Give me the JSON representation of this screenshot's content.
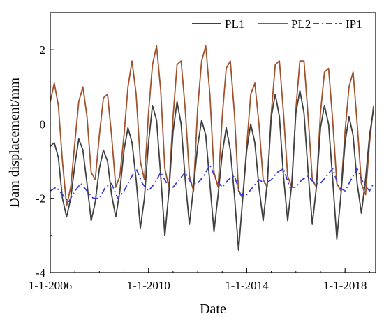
{
  "chart_data": {
    "type": "line",
    "title": "",
    "xlabel": "Date",
    "ylabel": "Dam displacement/mm",
    "xlim": [
      "2006-01-01",
      "2019-04-01"
    ],
    "ylim": [
      -4,
      3
    ],
    "x_ticks": [
      "1-1-2006",
      "1-1-2010",
      "1-1-2014",
      "1-1-2018"
    ],
    "y_ticks": [
      -4,
      -2,
      0,
      2
    ],
    "legend_position": "top-right",
    "grid": false,
    "series": [
      {
        "name": "PL1",
        "color": "#404040",
        "style": "solid",
        "points": [
          [
            "2006-01-01",
            -0.6
          ],
          [
            "2006-03-01",
            -0.5
          ],
          [
            "2006-05-01",
            -0.9
          ],
          [
            "2006-07-01",
            -2.0
          ],
          [
            "2006-09-01",
            -2.5
          ],
          [
            "2006-11-01",
            -2.0
          ],
          [
            "2007-01-01",
            -1.1
          ],
          [
            "2007-03-01",
            -0.4
          ],
          [
            "2007-05-01",
            -0.7
          ],
          [
            "2007-07-01",
            -1.6
          ],
          [
            "2007-09-01",
            -2.6
          ],
          [
            "2007-11-01",
            -2.1
          ],
          [
            "2008-01-01",
            -1.2
          ],
          [
            "2008-03-01",
            -0.7
          ],
          [
            "2008-05-01",
            -1.0
          ],
          [
            "2008-07-01",
            -1.9
          ],
          [
            "2008-09-01",
            -2.5
          ],
          [
            "2008-11-01",
            -1.8
          ],
          [
            "2009-01-01",
            -0.7
          ],
          [
            "2009-03-01",
            -0.1
          ],
          [
            "2009-05-01",
            -0.5
          ],
          [
            "2009-07-01",
            -1.5
          ],
          [
            "2009-09-01",
            -2.8
          ],
          [
            "2009-11-01",
            -2.0
          ],
          [
            "2010-01-01",
            -0.5
          ],
          [
            "2010-03-01",
            0.5
          ],
          [
            "2010-05-01",
            0.1
          ],
          [
            "2010-07-01",
            -1.4
          ],
          [
            "2010-09-01",
            -3.0
          ],
          [
            "2010-11-01",
            -1.8
          ],
          [
            "2011-01-01",
            -0.2
          ],
          [
            "2011-03-01",
            0.6
          ],
          [
            "2011-05-01",
            0.0
          ],
          [
            "2011-07-01",
            -1.5
          ],
          [
            "2011-09-01",
            -2.7
          ],
          [
            "2011-11-01",
            -1.7
          ],
          [
            "2012-01-01",
            -0.6
          ],
          [
            "2012-03-01",
            0.1
          ],
          [
            "2012-05-01",
            -0.3
          ],
          [
            "2012-07-01",
            -1.6
          ],
          [
            "2012-09-01",
            -2.9
          ],
          [
            "2012-11-01",
            -1.9
          ],
          [
            "2013-01-01",
            -0.8
          ],
          [
            "2013-03-01",
            -0.1
          ],
          [
            "2013-05-01",
            -0.7
          ],
          [
            "2013-07-01",
            -1.9
          ],
          [
            "2013-09-01",
            -3.4
          ],
          [
            "2013-11-01",
            -2.0
          ],
          [
            "2014-01-01",
            -0.7
          ],
          [
            "2014-03-01",
            0.0
          ],
          [
            "2014-05-01",
            -0.5
          ],
          [
            "2014-07-01",
            -1.7
          ],
          [
            "2014-09-01",
            -2.6
          ],
          [
            "2014-11-01",
            -1.6
          ],
          [
            "2015-01-01",
            0.2
          ],
          [
            "2015-03-01",
            0.8
          ],
          [
            "2015-05-01",
            0.2
          ],
          [
            "2015-07-01",
            -1.4
          ],
          [
            "2015-09-01",
            -2.6
          ],
          [
            "2015-11-01",
            -1.6
          ],
          [
            "2016-01-01",
            0.3
          ],
          [
            "2016-03-01",
            0.9
          ],
          [
            "2016-05-01",
            0.3
          ],
          [
            "2016-07-01",
            -1.3
          ],
          [
            "2016-09-01",
            -2.7
          ],
          [
            "2016-11-01",
            -1.7
          ],
          [
            "2017-01-01",
            -0.1
          ],
          [
            "2017-03-01",
            0.5
          ],
          [
            "2017-05-01",
            0.0
          ],
          [
            "2017-07-01",
            -1.5
          ],
          [
            "2017-09-01",
            -3.1
          ],
          [
            "2017-11-01",
            -1.9
          ],
          [
            "2018-01-01",
            -0.5
          ],
          [
            "2018-03-01",
            0.2
          ],
          [
            "2018-05-01",
            -0.3
          ],
          [
            "2018-07-01",
            -1.6
          ],
          [
            "2018-09-01",
            -2.4
          ],
          [
            "2018-11-01",
            -1.5
          ],
          [
            "2019-01-01",
            -0.3
          ],
          [
            "2019-03-01",
            0.4
          ]
        ]
      },
      {
        "name": "PL2",
        "color": "#a0522d",
        "style": "solid",
        "points": [
          [
            "2006-01-01",
            0.6
          ],
          [
            "2006-03-01",
            1.1
          ],
          [
            "2006-05-01",
            0.5
          ],
          [
            "2006-07-01",
            -1.0
          ],
          [
            "2006-09-01",
            -2.2
          ],
          [
            "2006-11-01",
            -1.7
          ],
          [
            "2007-01-01",
            -0.5
          ],
          [
            "2007-03-01",
            0.6
          ],
          [
            "2007-05-01",
            1.0
          ],
          [
            "2007-07-01",
            0.2
          ],
          [
            "2007-09-01",
            -1.3
          ],
          [
            "2007-11-01",
            -1.5
          ],
          [
            "2008-01-01",
            -0.3
          ],
          [
            "2008-03-01",
            0.7
          ],
          [
            "2008-05-01",
            0.8
          ],
          [
            "2008-07-01",
            -0.3
          ],
          [
            "2008-09-01",
            -1.7
          ],
          [
            "2008-11-01",
            -1.4
          ],
          [
            "2009-01-01",
            -0.3
          ],
          [
            "2009-03-01",
            1.0
          ],
          [
            "2009-05-01",
            1.7
          ],
          [
            "2009-07-01",
            0.8
          ],
          [
            "2009-09-01",
            -1.0
          ],
          [
            "2009-11-01",
            -1.5
          ],
          [
            "2010-01-01",
            0.3
          ],
          [
            "2010-03-01",
            1.6
          ],
          [
            "2010-05-01",
            2.1
          ],
          [
            "2010-07-01",
            0.9
          ],
          [
            "2010-09-01",
            -1.2
          ],
          [
            "2010-11-01",
            -1.7
          ],
          [
            "2011-01-01",
            0.2
          ],
          [
            "2011-03-01",
            1.6
          ],
          [
            "2011-05-01",
            1.7
          ],
          [
            "2011-07-01",
            0.4
          ],
          [
            "2011-09-01",
            -1.4
          ],
          [
            "2011-11-01",
            -1.8
          ],
          [
            "2012-01-01",
            0.4
          ],
          [
            "2012-03-01",
            1.7
          ],
          [
            "2012-05-01",
            2.1
          ],
          [
            "2012-07-01",
            0.8
          ],
          [
            "2012-09-01",
            -1.3
          ],
          [
            "2012-11-01",
            -1.7
          ],
          [
            "2013-01-01",
            0.2
          ],
          [
            "2013-03-01",
            1.5
          ],
          [
            "2013-05-01",
            1.7
          ],
          [
            "2013-07-01",
            0.3
          ],
          [
            "2013-09-01",
            -1.8
          ],
          [
            "2013-11-01",
            -2.0
          ],
          [
            "2014-01-01",
            -0.6
          ],
          [
            "2014-03-01",
            0.8
          ],
          [
            "2014-05-01",
            1.1
          ],
          [
            "2014-07-01",
            0.0
          ],
          [
            "2014-09-01",
            -1.5
          ],
          [
            "2014-11-01",
            -1.7
          ],
          [
            "2015-01-01",
            0.3
          ],
          [
            "2015-03-01",
            1.6
          ],
          [
            "2015-05-01",
            1.7
          ],
          [
            "2015-07-01",
            0.3
          ],
          [
            "2015-09-01",
            -1.4
          ],
          [
            "2015-11-01",
            -1.7
          ],
          [
            "2016-01-01",
            0.4
          ],
          [
            "2016-03-01",
            1.7
          ],
          [
            "2016-05-01",
            1.7
          ],
          [
            "2016-07-01",
            0.2
          ],
          [
            "2016-09-01",
            -1.5
          ],
          [
            "2016-11-01",
            -1.7
          ],
          [
            "2017-01-01",
            0.3
          ],
          [
            "2017-03-01",
            1.4
          ],
          [
            "2017-05-01",
            1.5
          ],
          [
            "2017-07-01",
            0.1
          ],
          [
            "2017-09-01",
            -1.6
          ],
          [
            "2017-11-01",
            -1.8
          ],
          [
            "2018-01-01",
            -0.2
          ],
          [
            "2018-03-01",
            1.0
          ],
          [
            "2018-05-01",
            1.4
          ],
          [
            "2018-07-01",
            0.0
          ],
          [
            "2018-09-01",
            -1.6
          ],
          [
            "2018-11-01",
            -1.9
          ],
          [
            "2019-01-01",
            -0.5
          ],
          [
            "2019-03-01",
            0.5
          ]
        ]
      },
      {
        "name": "IP1",
        "color": "#3b3bdc",
        "style": "dash-dot",
        "points": [
          [
            "2006-01-01",
            -1.8
          ],
          [
            "2006-04-01",
            -1.7
          ],
          [
            "2006-07-01",
            -1.9
          ],
          [
            "2006-10-01",
            -2.1
          ],
          [
            "2007-01-01",
            -1.8
          ],
          [
            "2007-04-01",
            -1.6
          ],
          [
            "2007-07-01",
            -1.8
          ],
          [
            "2007-10-01",
            -2.0
          ],
          [
            "2008-01-01",
            -2.0
          ],
          [
            "2008-04-01",
            -1.7
          ],
          [
            "2008-07-01",
            -1.6
          ],
          [
            "2008-10-01",
            -2.0
          ],
          [
            "2009-01-01",
            -1.8
          ],
          [
            "2009-04-01",
            -1.5
          ],
          [
            "2009-07-01",
            -1.2
          ],
          [
            "2009-10-01",
            -1.6
          ],
          [
            "2010-01-01",
            -1.8
          ],
          [
            "2010-04-01",
            -1.6
          ],
          [
            "2010-07-01",
            -1.3
          ],
          [
            "2010-10-01",
            -1.6
          ],
          [
            "2011-01-01",
            -1.7
          ],
          [
            "2011-04-01",
            -1.5
          ],
          [
            "2011-07-01",
            -1.3
          ],
          [
            "2011-10-01",
            -1.6
          ],
          [
            "2012-01-01",
            -1.6
          ],
          [
            "2012-04-01",
            -1.4
          ],
          [
            "2012-07-01",
            -1.1
          ],
          [
            "2012-10-01",
            -1.5
          ],
          [
            "2013-01-01",
            -1.7
          ],
          [
            "2013-04-01",
            -1.5
          ],
          [
            "2013-07-01",
            -1.4
          ],
          [
            "2013-10-01",
            -1.9
          ],
          [
            "2014-01-01",
            -1.9
          ],
          [
            "2014-04-01",
            -1.7
          ],
          [
            "2014-07-01",
            -1.5
          ],
          [
            "2014-10-01",
            -1.6
          ],
          [
            "2015-01-01",
            -1.5
          ],
          [
            "2015-04-01",
            -1.3
          ],
          [
            "2015-07-01",
            -1.2
          ],
          [
            "2015-10-01",
            -1.7
          ],
          [
            "2016-01-01",
            -1.7
          ],
          [
            "2016-04-01",
            -1.5
          ],
          [
            "2016-07-01",
            -1.4
          ],
          [
            "2016-10-01",
            -1.6
          ],
          [
            "2017-01-01",
            -1.6
          ],
          [
            "2017-04-01",
            -1.4
          ],
          [
            "2017-07-01",
            -1.2
          ],
          [
            "2017-10-01",
            -1.7
          ],
          [
            "2018-01-01",
            -1.8
          ],
          [
            "2018-04-01",
            -1.5
          ],
          [
            "2018-07-01",
            -1.2
          ],
          [
            "2018-10-01",
            -1.6
          ],
          [
            "2019-01-01",
            -1.8
          ],
          [
            "2019-03-01",
            -1.6
          ]
        ]
      }
    ]
  }
}
